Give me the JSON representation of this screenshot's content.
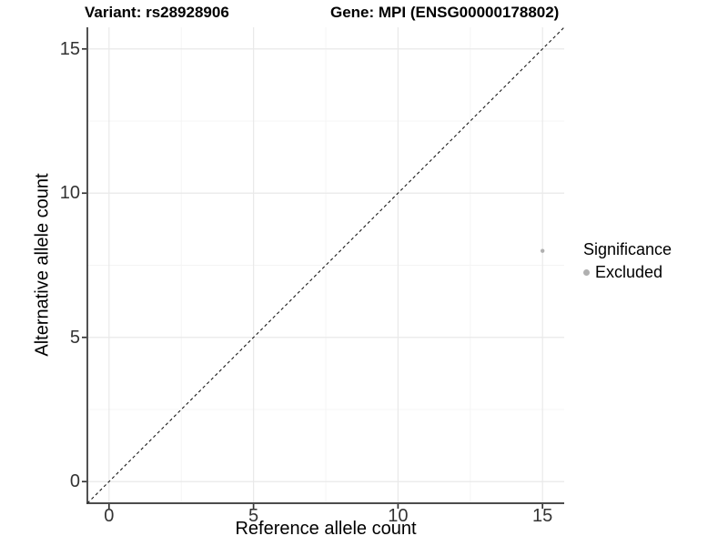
{
  "window": {
    "background": "#ffffff"
  },
  "header": {
    "variant_title": "Variant: rs28928906",
    "gene_title": "Gene: MPI (ENSG00000178802)"
  },
  "chart_data": {
    "type": "scatter",
    "title": "Variant: rs28928906          Gene: MPI (ENSG00000178802)",
    "xlabel": "Reference allele count",
    "ylabel": "Alternative allele count",
    "xlim": [
      -0.75,
      15.75
    ],
    "ylim": [
      -0.75,
      15.75
    ],
    "x_ticks": [
      0,
      5,
      10,
      15
    ],
    "y_ticks": [
      0,
      5,
      10,
      15
    ],
    "x_minor_ticks": [
      2.5,
      7.5,
      12.5
    ],
    "y_minor_ticks": [
      2.5,
      7.5,
      12.5
    ],
    "grid": "major+minor",
    "legend_position": "right",
    "series": [
      {
        "name": "Excluded",
        "color": "#b0b0b0",
        "point_radius": 2.2,
        "points": [
          {
            "x": 15,
            "y": 8
          }
        ]
      }
    ],
    "reference_line": {
      "type": "identity",
      "slope": 1,
      "intercept": 0,
      "style": "dashed",
      "color": "#1a1a1a"
    }
  },
  "legend": {
    "title": "Significance",
    "items": [
      {
        "label": "Excluded",
        "color": "#b0b0b0"
      }
    ]
  },
  "style_colors": {
    "grid_major": "#e9e9e9",
    "grid_minor": "#f4f4f4",
    "axis_line": "#333333",
    "tick_text": "#333333",
    "title_text": "#000000"
  }
}
